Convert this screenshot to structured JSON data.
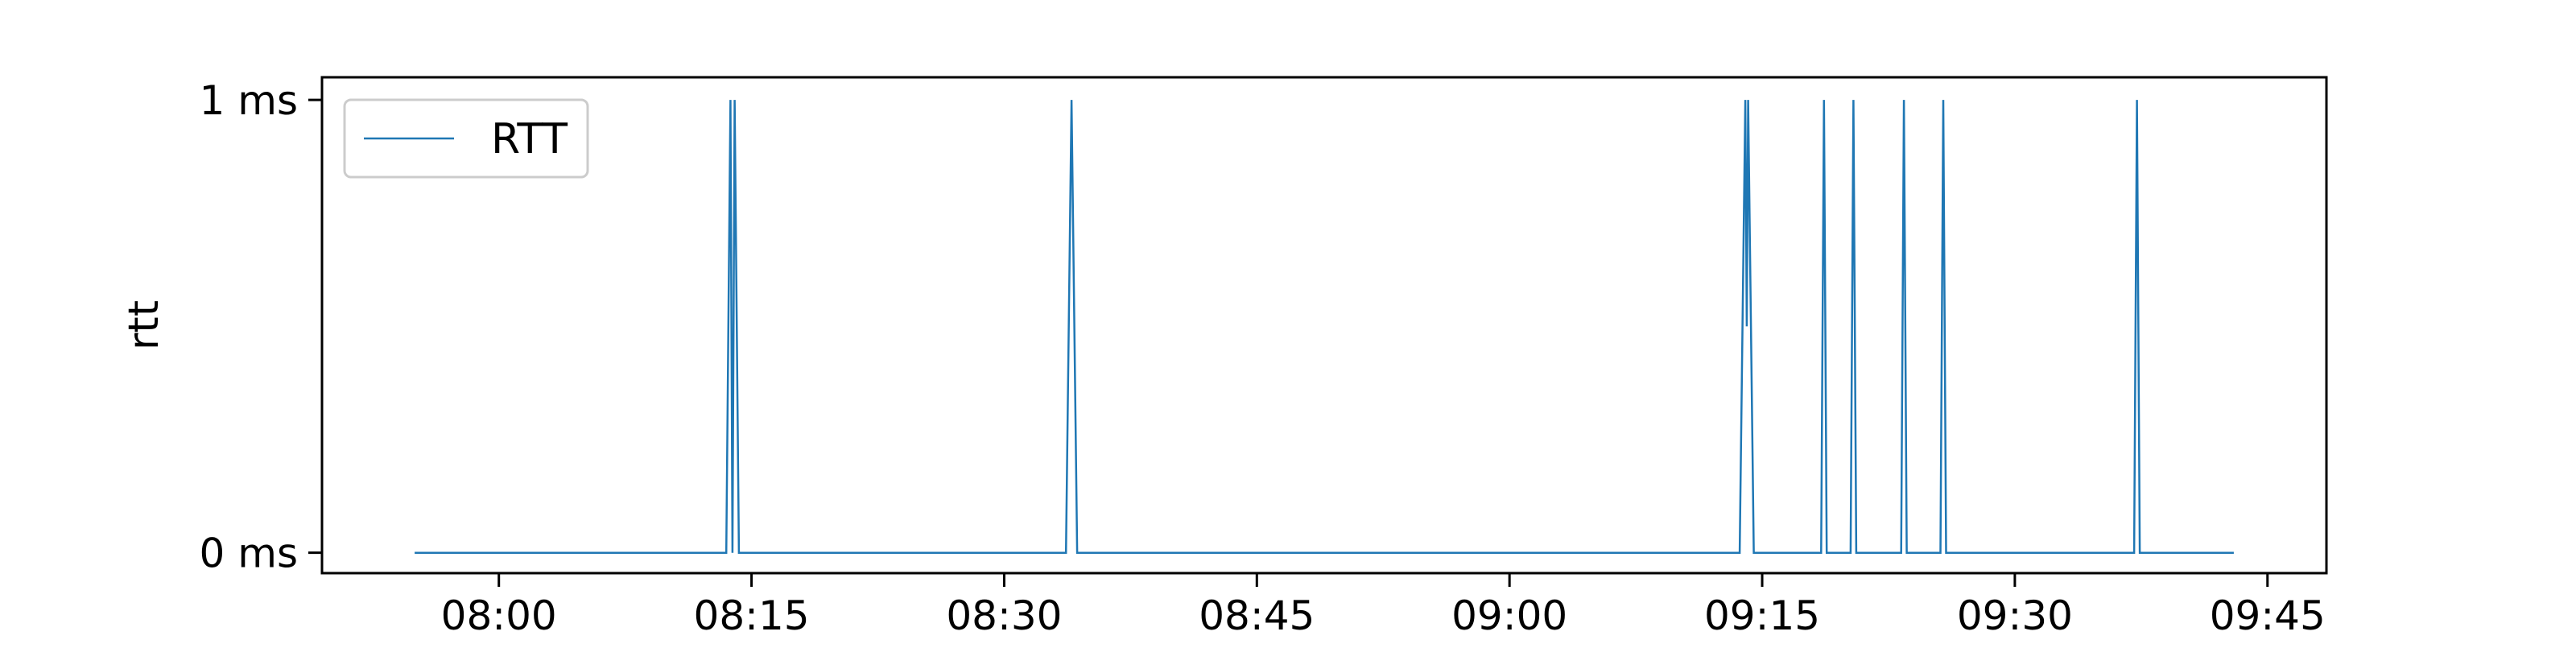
{
  "chart_data": {
    "type": "line",
    "title": "",
    "xlabel": "",
    "ylabel": "rtt",
    "x_ticks": [
      "08:00",
      "08:15",
      "08:30",
      "08:45",
      "09:00",
      "09:15",
      "09:30",
      "09:45"
    ],
    "y_ticks": [
      "0 ms",
      "1 ms"
    ],
    "xlim": [
      "07:49:30",
      "09:48:30"
    ],
    "ylim": [
      -0.045,
      1.05
    ],
    "legend": {
      "position": "top-left",
      "entries": [
        "RTT"
      ]
    },
    "grid": false,
    "series": [
      {
        "name": "RTT",
        "color": "#1f77b4",
        "points": [
          [
            "07:55:00",
            0
          ],
          [
            "08:13:30",
            0
          ],
          [
            "08:13:45",
            1
          ],
          [
            "08:13:52",
            0
          ],
          [
            "08:14:00",
            1
          ],
          [
            "08:14:15",
            0
          ],
          [
            "08:33:40",
            0
          ],
          [
            "08:34:00",
            1
          ],
          [
            "08:34:20",
            0
          ],
          [
            "09:13:40",
            0
          ],
          [
            "09:14:00",
            1
          ],
          [
            "09:14:05",
            0.5
          ],
          [
            "09:14:10",
            1
          ],
          [
            "09:14:30",
            0
          ],
          [
            "09:18:30",
            0
          ],
          [
            "09:18:40",
            1
          ],
          [
            "09:18:50",
            0
          ],
          [
            "09:20:15",
            0
          ],
          [
            "09:20:25",
            1
          ],
          [
            "09:20:35",
            0
          ],
          [
            "09:23:15",
            0
          ],
          [
            "09:23:25",
            1
          ],
          [
            "09:23:35",
            0
          ],
          [
            "09:25:35",
            0
          ],
          [
            "09:25:45",
            1
          ],
          [
            "09:25:55",
            0
          ],
          [
            "09:37:05",
            0
          ],
          [
            "09:37:15",
            1
          ],
          [
            "09:37:25",
            0
          ],
          [
            "09:43:00",
            0
          ]
        ]
      }
    ]
  }
}
